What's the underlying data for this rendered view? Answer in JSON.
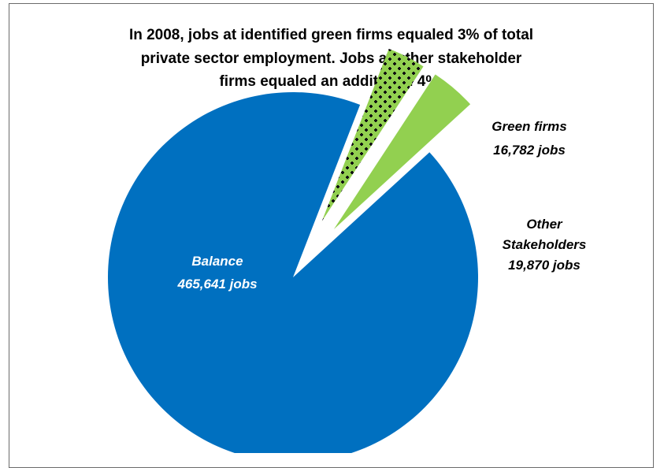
{
  "title_lines": [
    "In 2008, jobs at identified green firms equaled 3% of total",
    "private sector employment.  Jobs at other stakeholder",
    "firms equaled  an additional  4%."
  ],
  "chart_data": {
    "type": "pie",
    "title": "In 2008, jobs at identified green firms equaled 3% of total private sector employment.  Jobs at other stakeholder firms equaled  an additional  4%.",
    "slices": [
      {
        "name": "Balance",
        "value": 465641,
        "value_label": "465,641  jobs",
        "color": "#0070c0",
        "fill": "solid"
      },
      {
        "name": "Green firms",
        "value": 16782,
        "value_label": "16,782 jobs",
        "color": "#92d050",
        "fill": "checker-black"
      },
      {
        "name": "Other Stakeholders",
        "value": 19870,
        "value_label": "19,870  jobs",
        "color": "#92d050",
        "fill": "solid"
      }
    ],
    "exploded": [
      "Green firms",
      "Other Stakeholders"
    ],
    "legend": "none",
    "data_labels": "inside/outside"
  }
}
